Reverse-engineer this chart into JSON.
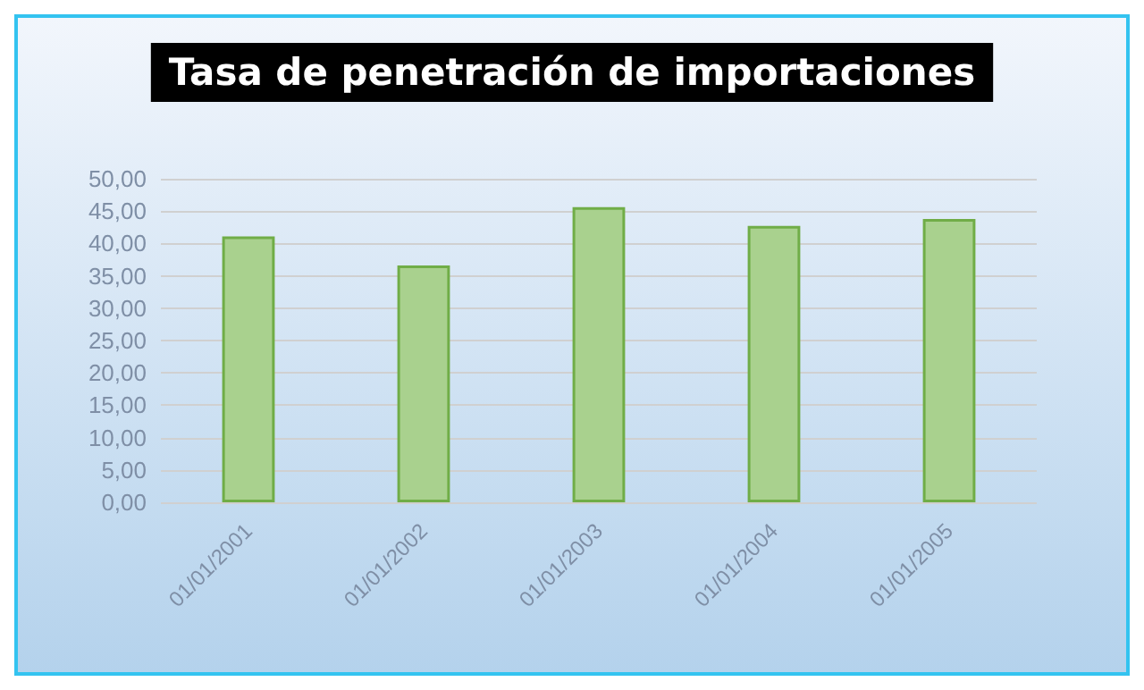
{
  "chart_data": {
    "type": "bar",
    "title": "Tasa de penetración de importaciones",
    "categories": [
      "01/01/2001",
      "01/01/2002",
      "01/01/2003",
      "01/01/2004",
      "01/01/2005"
    ],
    "values": [
      41.1,
      36.6,
      45.6,
      42.7,
      43.8
    ],
    "color": "#a9d18e",
    "ylim": [
      0,
      50
    ],
    "yticks": [
      {
        "value": 0,
        "label": "0,00"
      },
      {
        "value": 5,
        "label": "5,00"
      },
      {
        "value": 10,
        "label": "10,00"
      },
      {
        "value": 15,
        "label": "15,00"
      },
      {
        "value": 20,
        "label": "20,00"
      },
      {
        "value": 25,
        "label": "25,00"
      },
      {
        "value": 30,
        "label": "30,00"
      },
      {
        "value": 35,
        "label": "35,00"
      },
      {
        "value": 40,
        "label": "40,00"
      },
      {
        "value": 45,
        "label": "45,00"
      },
      {
        "value": 50,
        "label": "50,00"
      }
    ],
    "grid": true
  }
}
